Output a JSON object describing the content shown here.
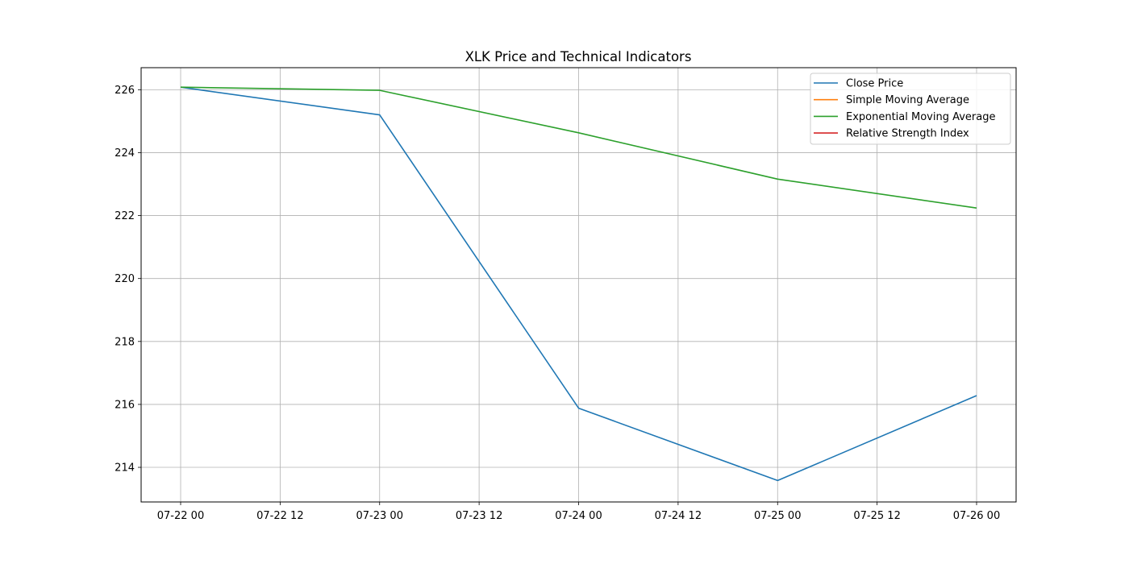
{
  "chart_data": {
    "type": "line",
    "title": "XLK Price and Technical Indicators",
    "xlabel": "",
    "ylabel": "",
    "x": [
      "07-22 00",
      "07-23 00",
      "07-24 00",
      "07-25 00",
      "07-26 00"
    ],
    "x_ticks": [
      "07-22 00",
      "07-22 12",
      "07-23 00",
      "07-23 12",
      "07-24 00",
      "07-24 12",
      "07-25 00",
      "07-25 12",
      "07-26 00"
    ],
    "y_ticks": [
      214,
      216,
      218,
      220,
      222,
      224,
      226
    ],
    "ylim": [
      212.9,
      226.7
    ],
    "grid": true,
    "legend_position": "top-right",
    "series": [
      {
        "name": "Close Price",
        "color": "#1f77b4",
        "values": [
          226.08,
          225.2,
          215.88,
          213.58,
          216.28
        ]
      },
      {
        "name": "Simple Moving Average",
        "color": "#ff7f0e",
        "values": [
          null,
          null,
          null,
          null,
          null
        ]
      },
      {
        "name": "Exponential Moving Average",
        "color": "#2ca02c",
        "values": [
          226.08,
          225.98,
          224.63,
          223.16,
          222.24
        ]
      },
      {
        "name": "Relative Strength Index",
        "color": "#d62728",
        "values": [
          null,
          null,
          null,
          null,
          null
        ]
      }
    ]
  }
}
